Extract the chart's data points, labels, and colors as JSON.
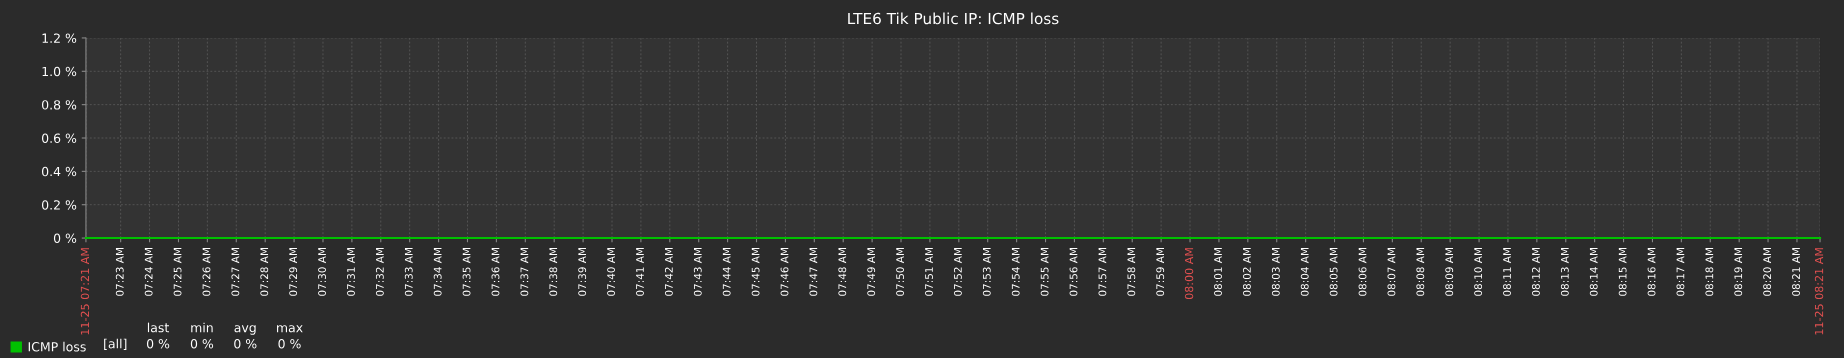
{
  "chart_data": {
    "type": "line",
    "title": "LTE6 Tik Public IP: ICMP loss",
    "xlim": [
      7.3633,
      8.3633
    ],
    "ylim": [
      0,
      1.2
    ],
    "yticks": [
      {
        "value": 0,
        "label": "0 %"
      },
      {
        "value": 0.2,
        "label": "0.2 %"
      },
      {
        "value": 0.4,
        "label": "0.4 %"
      },
      {
        "value": 0.6,
        "label": "0.6 %"
      },
      {
        "value": 0.8,
        "label": "0.8 %"
      },
      {
        "value": 1.0,
        "label": "1.0 %"
      },
      {
        "value": 1.2,
        "label": "1.2 %"
      }
    ],
    "xticks": [
      {
        "value": 7.3633,
        "label": "11-25 07:21 AM"
      },
      {
        "value": 7.38333,
        "label": "07:23 AM"
      },
      {
        "value": 7.4,
        "label": "07:24 AM"
      },
      {
        "value": 7.41667,
        "label": "07:25 AM"
      },
      {
        "value": 7.43333,
        "label": "07:26 AM"
      },
      {
        "value": 7.45,
        "label": "07:27 AM"
      },
      {
        "value": 7.46667,
        "label": "07:28 AM"
      },
      {
        "value": 7.48333,
        "label": "07:29 AM"
      },
      {
        "value": 7.5,
        "label": "07:30 AM"
      },
      {
        "value": 7.51667,
        "label": "07:31 AM"
      },
      {
        "value": 7.53333,
        "label": "07:32 AM"
      },
      {
        "value": 7.55,
        "label": "07:33 AM"
      },
      {
        "value": 7.56667,
        "label": "07:34 AM"
      },
      {
        "value": 7.58333,
        "label": "07:35 AM"
      },
      {
        "value": 7.6,
        "label": "07:36 AM"
      },
      {
        "value": 7.61667,
        "label": "07:37 AM"
      },
      {
        "value": 7.63333,
        "label": "07:38 AM"
      },
      {
        "value": 7.65,
        "label": "07:39 AM"
      },
      {
        "value": 7.66667,
        "label": "07:40 AM"
      },
      {
        "value": 7.68333,
        "label": "07:41 AM"
      },
      {
        "value": 7.7,
        "label": "07:42 AM"
      },
      {
        "value": 7.71667,
        "label": "07:43 AM"
      },
      {
        "value": 7.73333,
        "label": "07:44 AM"
      },
      {
        "value": 7.75,
        "label": "07:45 AM"
      },
      {
        "value": 7.76667,
        "label": "07:46 AM"
      },
      {
        "value": 7.78333,
        "label": "07:47 AM"
      },
      {
        "value": 7.8,
        "label": "07:48 AM"
      },
      {
        "value": 7.81667,
        "label": "07:49 AM"
      },
      {
        "value": 7.83333,
        "label": "07:50 AM"
      },
      {
        "value": 7.85,
        "label": "07:51 AM"
      },
      {
        "value": 7.86667,
        "label": "07:52 AM"
      },
      {
        "value": 7.88333,
        "label": "07:53 AM"
      },
      {
        "value": 7.9,
        "label": "07:54 AM"
      },
      {
        "value": 7.91667,
        "label": "07:55 AM"
      },
      {
        "value": 7.93333,
        "label": "07:56 AM"
      },
      {
        "value": 7.95,
        "label": "07:57 AM"
      },
      {
        "value": 7.96667,
        "label": "07:58 AM"
      },
      {
        "value": 7.98333,
        "label": "07:59 AM"
      },
      {
        "value": 8,
        "label": "08:00 AM"
      },
      {
        "value": 8.01667,
        "label": "08:01 AM"
      },
      {
        "value": 8.03333,
        "label": "08:02 AM"
      },
      {
        "value": 8.05,
        "label": "08:03 AM"
      },
      {
        "value": 8.06667,
        "label": "08:04 AM"
      },
      {
        "value": 8.08333,
        "label": "08:05 AM"
      },
      {
        "value": 8.1,
        "label": "08:06 AM"
      },
      {
        "value": 8.11667,
        "label": "08:07 AM"
      },
      {
        "value": 8.13333,
        "label": "08:08 AM"
      },
      {
        "value": 8.15,
        "label": "08:09 AM"
      },
      {
        "value": 8.16667,
        "label": "08:10 AM"
      },
      {
        "value": 8.18333,
        "label": "08:11 AM"
      },
      {
        "value": 8.2,
        "label": "08:12 AM"
      },
      {
        "value": 8.21667,
        "label": "08:13 AM"
      },
      {
        "value": 8.23333,
        "label": "08:14 AM"
      },
      {
        "value": 8.25,
        "label": "08:15 AM"
      },
      {
        "value": 8.26667,
        "label": "08:16 AM"
      },
      {
        "value": 8.28333,
        "label": "08:17 AM"
      },
      {
        "value": 8.3,
        "label": "08:18 AM"
      },
      {
        "value": 8.31667,
        "label": "08:19 AM"
      },
      {
        "value": 8.33333,
        "label": "08:20 AM"
      },
      {
        "value": 8.35,
        "label": "08:21 AM"
      },
      {
        "value": 8.3633,
        "label": "11-25 08:21 AM"
      }
    ],
    "x": [
      7.3633,
      8.3633
    ],
    "series": [
      {
        "name": "ICMP loss",
        "color": "#00c000",
        "values": [
          0,
          0
        ]
      }
    ],
    "grid": true,
    "legend": "bottom left",
    "line_style": "solid",
    "marker": "none",
    "annotations": [
      "[all]",
      "last",
      "min",
      "avg",
      "max",
      "0 %",
      "0 %",
      "0 %",
      "0 %"
    ]
  }
}
